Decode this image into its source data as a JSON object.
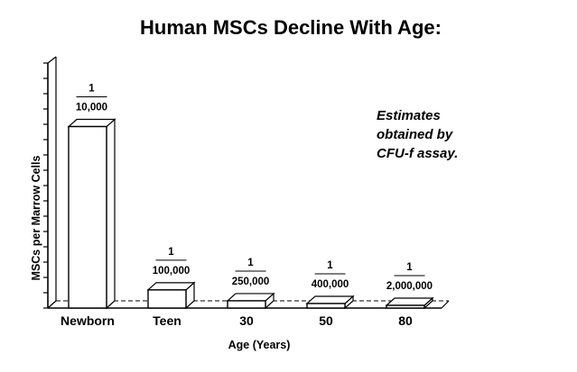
{
  "chart_data": {
    "type": "bar",
    "style": "3d",
    "title": "Human MSCs Decline With Age:",
    "xlabel": "Age (Years)",
    "ylabel": "MSCs per Marrow Cells",
    "categories": [
      "Newborn",
      "Teen",
      "30",
      "50",
      "80"
    ],
    "values": [
      0.0001,
      1e-05,
      4e-06,
      2.5e-06,
      5e-07
    ],
    "data_labels": [
      {
        "numerator": "1",
        "denominator": "10,000"
      },
      {
        "numerator": "1",
        "denominator": "100,000"
      },
      {
        "numerator": "1",
        "denominator": "250,000"
      },
      {
        "numerator": "1",
        "denominator": "400,000"
      },
      {
        "numerator": "1",
        "denominator": "2,000,000"
      }
    ],
    "annotation": [
      "Estimates",
      "obtained by",
      "CFU-f assay."
    ],
    "ylim": [
      0,
      0.000135
    ],
    "y_tick_labels_shown": false,
    "grid": false,
    "legend": "none",
    "colors": {
      "bar_front": "#ffffff",
      "bar_outline": "#000000"
    }
  }
}
